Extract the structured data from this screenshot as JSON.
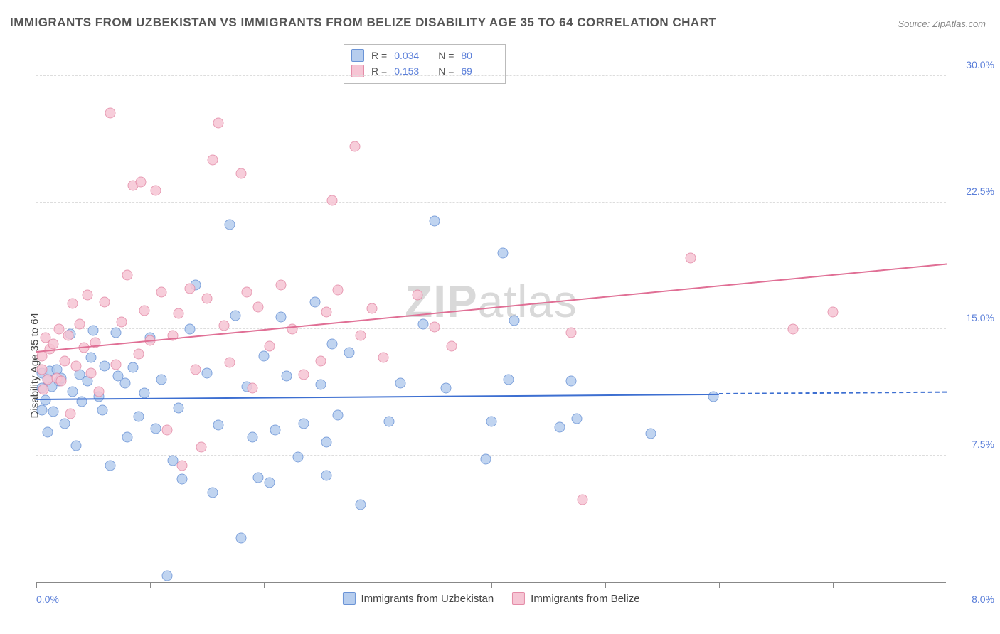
{
  "title": "IMMIGRANTS FROM UZBEKISTAN VS IMMIGRANTS FROM BELIZE DISABILITY AGE 35 TO 64 CORRELATION CHART",
  "source": "Source: ZipAtlas.com",
  "watermark": "ZIPatlas",
  "yaxis_title": "Disability Age 35 to 64",
  "chart": {
    "type": "scatter",
    "xlim": [
      0,
      8
    ],
    "ylim": [
      0,
      32
    ],
    "xtick_positions": [
      0,
      1,
      2,
      3,
      4,
      5,
      6,
      7,
      8
    ],
    "xaxis_min_label": "0.0%",
    "xaxis_max_label": "8.0%",
    "yticks": [
      {
        "y": 7.5,
        "label": "7.5%"
      },
      {
        "y": 15.0,
        "label": "15.0%"
      },
      {
        "y": 22.5,
        "label": "22.5%"
      },
      {
        "y": 30.0,
        "label": "30.0%"
      }
    ],
    "grid_color": "#dddddd",
    "background_color": "#ffffff",
    "point_radius": 7.5,
    "series": [
      {
        "id": "uzbekistan",
        "label": "Immigrants from Uzbekistan",
        "fill": "#b6cdee",
        "stroke": "#6a93d6",
        "trend_color": "#3d6fd1",
        "R": "0.034",
        "N": "80",
        "trend": {
          "x1": 0,
          "y1": 10.8,
          "x2": 6.0,
          "y2": 11.1,
          "dash_after_x": 6.0,
          "x2_dash": 8.0,
          "y2_dash": 11.2
        },
        "points": [
          [
            0.05,
            10.2
          ],
          [
            0.05,
            11.5
          ],
          [
            0.05,
            12.4
          ],
          [
            0.08,
            10.8
          ],
          [
            0.1,
            12.0
          ],
          [
            0.1,
            8.9
          ],
          [
            0.12,
            12.5
          ],
          [
            0.14,
            11.6
          ],
          [
            0.15,
            10.1
          ],
          [
            0.18,
            12.6
          ],
          [
            0.2,
            11.9
          ],
          [
            0.22,
            12.1
          ],
          [
            0.25,
            9.4
          ],
          [
            0.3,
            14.7
          ],
          [
            0.32,
            11.3
          ],
          [
            0.35,
            8.1
          ],
          [
            0.38,
            12.3
          ],
          [
            0.4,
            10.7
          ],
          [
            0.45,
            11.9
          ],
          [
            0.48,
            13.3
          ],
          [
            0.5,
            14.9
          ],
          [
            0.55,
            11.0
          ],
          [
            0.58,
            10.2
          ],
          [
            0.6,
            12.8
          ],
          [
            0.65,
            6.9
          ],
          [
            0.7,
            14.8
          ],
          [
            0.72,
            12.2
          ],
          [
            0.78,
            11.8
          ],
          [
            0.8,
            8.6
          ],
          [
            0.85,
            12.7
          ],
          [
            0.9,
            9.8
          ],
          [
            0.95,
            11.2
          ],
          [
            1.0,
            14.5
          ],
          [
            1.05,
            9.1
          ],
          [
            1.1,
            12.0
          ],
          [
            1.15,
            0.4
          ],
          [
            1.2,
            7.2
          ],
          [
            1.25,
            10.3
          ],
          [
            1.28,
            6.1
          ],
          [
            1.35,
            15.0
          ],
          [
            1.4,
            17.6
          ],
          [
            1.5,
            12.4
          ],
          [
            1.55,
            5.3
          ],
          [
            1.6,
            9.3
          ],
          [
            1.7,
            21.2
          ],
          [
            1.75,
            15.8
          ],
          [
            1.8,
            2.6
          ],
          [
            1.85,
            11.6
          ],
          [
            1.9,
            8.6
          ],
          [
            1.95,
            6.2
          ],
          [
            2.0,
            13.4
          ],
          [
            2.05,
            5.9
          ],
          [
            2.1,
            9.0
          ],
          [
            2.15,
            15.7
          ],
          [
            2.2,
            12.2
          ],
          [
            2.3,
            7.4
          ],
          [
            2.35,
            9.4
          ],
          [
            2.45,
            16.6
          ],
          [
            2.5,
            11.7
          ],
          [
            2.55,
            8.3
          ],
          [
            2.55,
            6.3
          ],
          [
            2.6,
            14.1
          ],
          [
            2.65,
            9.9
          ],
          [
            2.75,
            13.6
          ],
          [
            2.85,
            4.6
          ],
          [
            3.1,
            9.5
          ],
          [
            3.2,
            11.8
          ],
          [
            3.4,
            15.3
          ],
          [
            3.5,
            21.4
          ],
          [
            3.6,
            11.5
          ],
          [
            3.95,
            7.3
          ],
          [
            4.0,
            9.5
          ],
          [
            4.1,
            19.5
          ],
          [
            4.15,
            12.0
          ],
          [
            4.2,
            15.5
          ],
          [
            4.6,
            9.2
          ],
          [
            4.7,
            11.9
          ],
          [
            4.75,
            9.7
          ],
          [
            5.95,
            11.0
          ],
          [
            5.4,
            8.8
          ]
        ]
      },
      {
        "id": "belize",
        "label": "Immigrants from Belize",
        "fill": "#f6c5d4",
        "stroke": "#e48ba7",
        "trend_color": "#e06f95",
        "R": "0.153",
        "N": "69",
        "trend": {
          "x1": 0,
          "y1": 13.6,
          "x2": 8.0,
          "y2": 18.8
        },
        "points": [
          [
            0.05,
            12.6
          ],
          [
            0.05,
            13.4
          ],
          [
            0.06,
            11.4
          ],
          [
            0.08,
            14.5
          ],
          [
            0.1,
            12.0
          ],
          [
            0.12,
            13.8
          ],
          [
            0.15,
            14.1
          ],
          [
            0.18,
            12.1
          ],
          [
            0.2,
            15.0
          ],
          [
            0.22,
            11.9
          ],
          [
            0.25,
            13.1
          ],
          [
            0.28,
            14.6
          ],
          [
            0.3,
            10.0
          ],
          [
            0.32,
            16.5
          ],
          [
            0.35,
            12.8
          ],
          [
            0.38,
            15.3
          ],
          [
            0.42,
            13.9
          ],
          [
            0.45,
            17.0
          ],
          [
            0.48,
            12.4
          ],
          [
            0.52,
            14.2
          ],
          [
            0.55,
            11.3
          ],
          [
            0.6,
            16.6
          ],
          [
            0.65,
            27.8
          ],
          [
            0.7,
            12.9
          ],
          [
            0.75,
            15.4
          ],
          [
            0.8,
            18.2
          ],
          [
            0.85,
            23.5
          ],
          [
            0.9,
            13.5
          ],
          [
            0.92,
            23.7
          ],
          [
            0.95,
            16.1
          ],
          [
            1.0,
            14.3
          ],
          [
            1.05,
            23.2
          ],
          [
            1.1,
            17.2
          ],
          [
            1.15,
            9.0
          ],
          [
            1.2,
            14.6
          ],
          [
            1.25,
            15.9
          ],
          [
            1.28,
            6.9
          ],
          [
            1.35,
            17.4
          ],
          [
            1.4,
            12.6
          ],
          [
            1.5,
            16.8
          ],
          [
            1.55,
            25.0
          ],
          [
            1.6,
            27.2
          ],
          [
            1.65,
            15.2
          ],
          [
            1.7,
            13.0
          ],
          [
            1.8,
            24.2
          ],
          [
            1.85,
            17.2
          ],
          [
            1.9,
            11.5
          ],
          [
            1.95,
            16.3
          ],
          [
            2.05,
            14.0
          ],
          [
            2.15,
            17.6
          ],
          [
            2.25,
            15.0
          ],
          [
            2.35,
            12.3
          ],
          [
            2.5,
            13.1
          ],
          [
            2.55,
            16.0
          ],
          [
            2.6,
            22.6
          ],
          [
            2.65,
            17.3
          ],
          [
            2.8,
            25.8
          ],
          [
            2.85,
            14.6
          ],
          [
            2.95,
            16.2
          ],
          [
            3.05,
            13.3
          ],
          [
            3.35,
            17.0
          ],
          [
            3.5,
            15.1
          ],
          [
            3.65,
            14.0
          ],
          [
            4.7,
            14.8
          ],
          [
            4.8,
            4.9
          ],
          [
            5.75,
            19.2
          ],
          [
            6.65,
            15.0
          ],
          [
            7.0,
            16.0
          ],
          [
            1.45,
            8.0
          ]
        ]
      }
    ]
  },
  "legend_box": {
    "rows": [
      {
        "swatch_series": "uzbekistan",
        "r_label": "R =",
        "n_label": "N ="
      },
      {
        "swatch_series": "belize",
        "r_label": "R =",
        "n_label": "N ="
      }
    ]
  }
}
